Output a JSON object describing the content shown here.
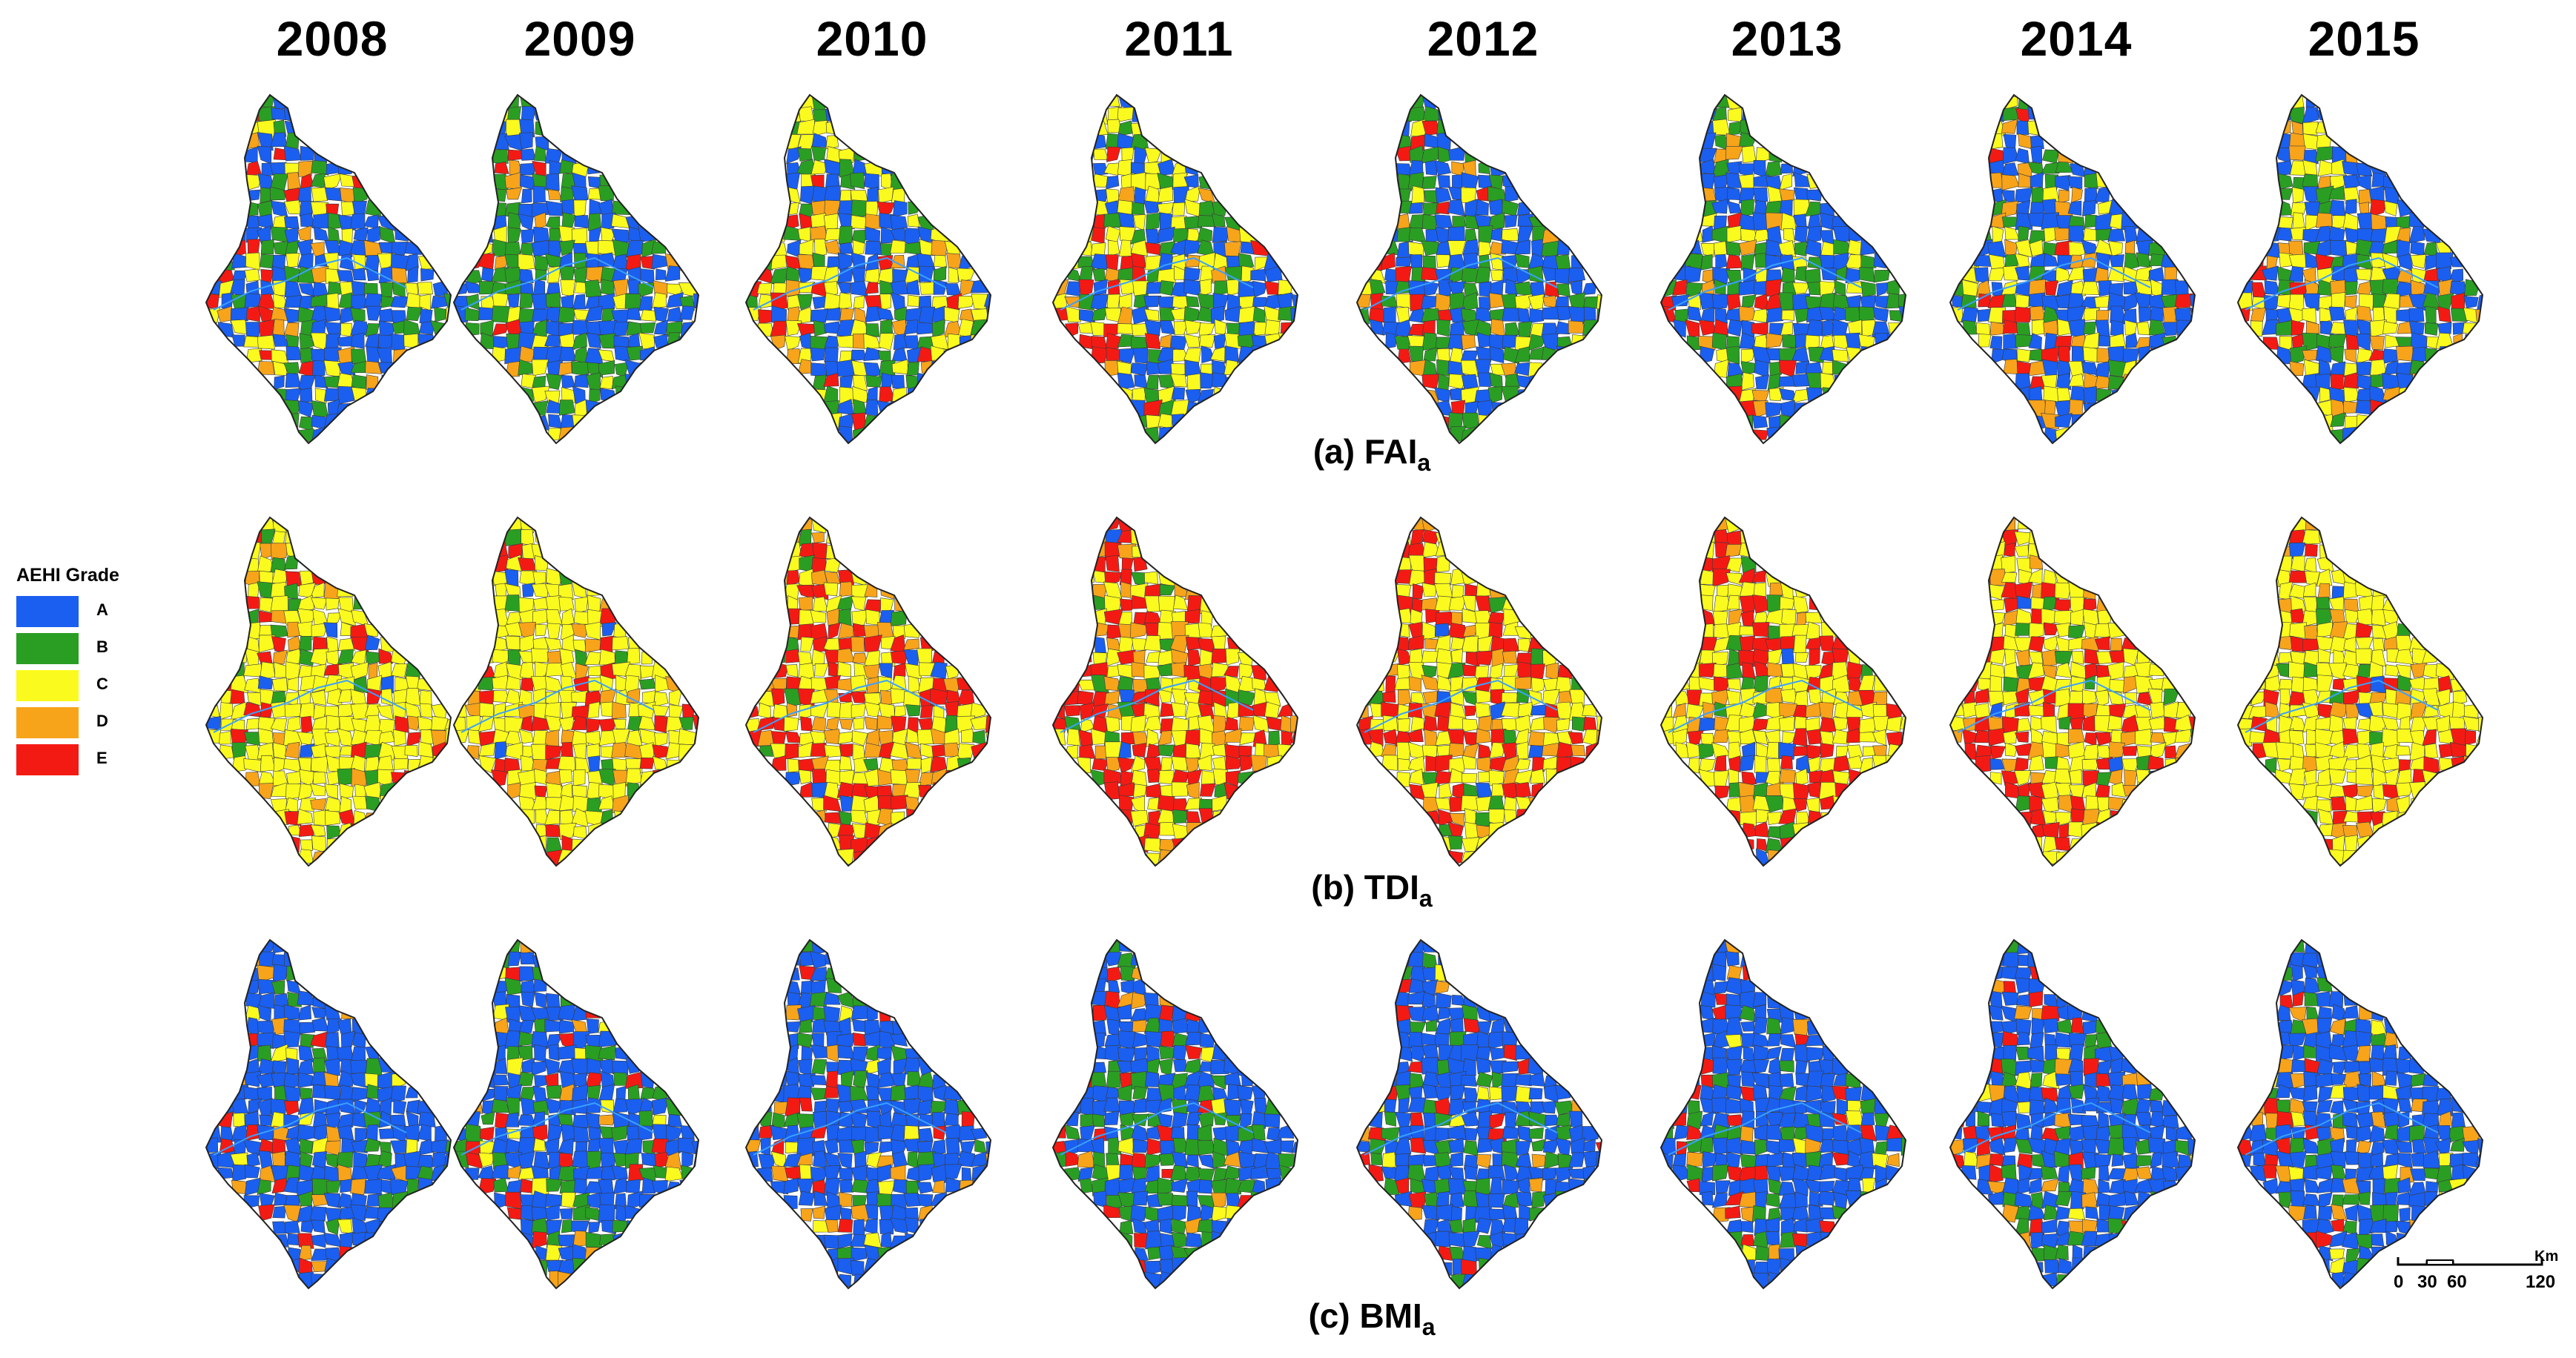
{
  "years": [
    "2008",
    "2009",
    "2010",
    "2011",
    "2012",
    "2013",
    "2014",
    "2015"
  ],
  "rows": [
    {
      "label_prefix": "(b) TDI",
      "label_sub": "a"
    }
  ],
  "row_labels": [
    {
      "prefix": "(a) FAI",
      "sub": "a"
    },
    {
      "prefix": "(b) TDI",
      "sub": "a"
    },
    {
      "prefix": "(c) BMI",
      "sub": "a"
    }
  ],
  "legend": {
    "title": "AEHI Grade",
    "items": [
      {
        "label": "A",
        "color": "#1a5ff0"
      },
      {
        "label": "B",
        "color": "#2a9e23"
      },
      {
        "label": "C",
        "color": "#fafa1e"
      },
      {
        "label": "D",
        "color": "#f7a41b"
      },
      {
        "label": "E",
        "color": "#f41a14"
      }
    ]
  },
  "scale_bar": {
    "ticks": [
      "0",
      "30",
      "60",
      "120"
    ],
    "unit": "Km"
  },
  "grade_mix": [
    [
      {
        "A": 0.55,
        "B": 0.2,
        "C": 0.15,
        "D": 0.07,
        "E": 0.03
      },
      {
        "A": 0.45,
        "B": 0.35,
        "C": 0.12,
        "D": 0.06,
        "E": 0.02
      },
      {
        "A": 0.35,
        "B": 0.2,
        "C": 0.35,
        "D": 0.07,
        "E": 0.03
      },
      {
        "A": 0.3,
        "B": 0.18,
        "C": 0.42,
        "D": 0.07,
        "E": 0.03
      },
      {
        "A": 0.42,
        "B": 0.35,
        "C": 0.15,
        "D": 0.06,
        "E": 0.02
      },
      {
        "A": 0.5,
        "B": 0.25,
        "C": 0.17,
        "D": 0.05,
        "E": 0.03
      },
      {
        "A": 0.45,
        "B": 0.15,
        "C": 0.2,
        "D": 0.17,
        "E": 0.03
      },
      {
        "A": 0.5,
        "B": 0.15,
        "C": 0.2,
        "D": 0.12,
        "E": 0.03
      }
    ],
    [
      {
        "A": 0.02,
        "B": 0.1,
        "C": 0.7,
        "D": 0.06,
        "E": 0.12
      },
      {
        "A": 0.02,
        "B": 0.06,
        "C": 0.7,
        "D": 0.1,
        "E": 0.12
      },
      {
        "A": 0.02,
        "B": 0.05,
        "C": 0.45,
        "D": 0.18,
        "E": 0.3
      },
      {
        "A": 0.02,
        "B": 0.06,
        "C": 0.38,
        "D": 0.14,
        "E": 0.4
      },
      {
        "A": 0.02,
        "B": 0.08,
        "C": 0.45,
        "D": 0.15,
        "E": 0.3
      },
      {
        "A": 0.02,
        "B": 0.08,
        "C": 0.55,
        "D": 0.1,
        "E": 0.25
      },
      {
        "A": 0.02,
        "B": 0.06,
        "C": 0.55,
        "D": 0.12,
        "E": 0.25
      },
      {
        "A": 0.03,
        "B": 0.06,
        "C": 0.72,
        "D": 0.07,
        "E": 0.12
      }
    ],
    [
      {
        "A": 0.75,
        "B": 0.12,
        "C": 0.04,
        "D": 0.05,
        "E": 0.04
      },
      {
        "A": 0.7,
        "B": 0.18,
        "C": 0.04,
        "D": 0.05,
        "E": 0.03
      },
      {
        "A": 0.72,
        "B": 0.18,
        "C": 0.04,
        "D": 0.04,
        "E": 0.02
      },
      {
        "A": 0.6,
        "B": 0.28,
        "C": 0.03,
        "D": 0.04,
        "E": 0.05
      },
      {
        "A": 0.75,
        "B": 0.17,
        "C": 0.02,
        "D": 0.02,
        "E": 0.04
      },
      {
        "A": 0.75,
        "B": 0.14,
        "C": 0.03,
        "D": 0.04,
        "E": 0.04
      },
      {
        "A": 0.7,
        "B": 0.17,
        "C": 0.03,
        "D": 0.05,
        "E": 0.05
      },
      {
        "A": 0.68,
        "B": 0.1,
        "C": 0.06,
        "D": 0.1,
        "E": 0.06
      }
    ]
  ]
}
